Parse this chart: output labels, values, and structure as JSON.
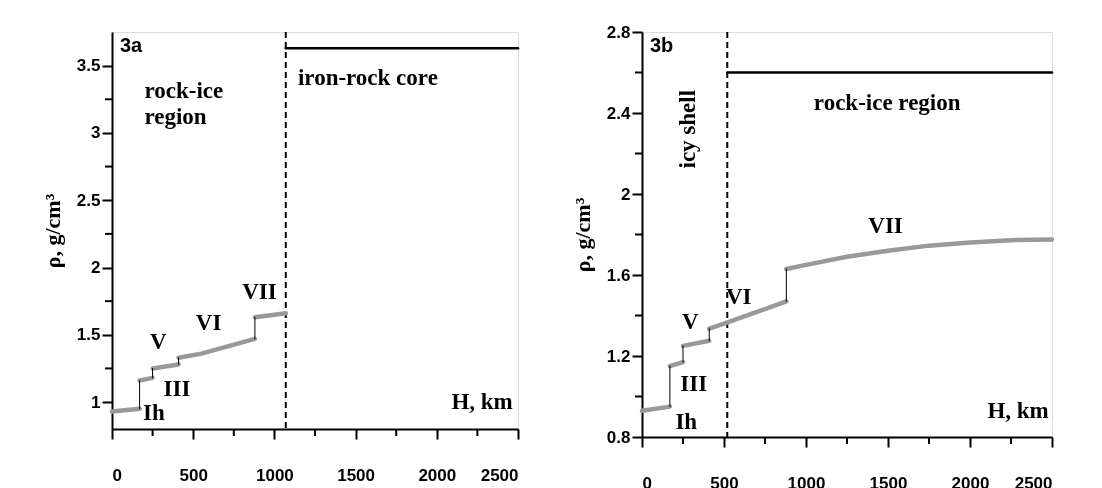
{
  "chart_data": [
    {
      "type": "line",
      "title": "3a",
      "ylabel": "ρ, g/cm³",
      "xlim": [
        0,
        2500
      ],
      "ylim": [
        0.8,
        3.75
      ],
      "xticks": [
        0,
        {
          "value": 250,
          "label": null
        },
        500,
        {
          "value": 750,
          "label": null
        },
        1000,
        {
          "value": 1250,
          "label": null
        },
        1500,
        {
          "value": 1750,
          "label": null
        },
        2000,
        {
          "value": 2250,
          "label": null
        },
        2500
      ],
      "yticks": [
        1,
        {
          "value": 1.25,
          "label": null
        },
        1.5,
        {
          "value": 1.75,
          "label": null
        },
        2,
        {
          "value": 2.25,
          "label": null
        },
        2.5,
        {
          "value": 2.75,
          "label": null
        },
        3,
        {
          "value": 3.25,
          "label": null
        },
        3.5
      ],
      "grid": false,
      "line_style": "solid",
      "series": [
        {
          "color": "#999999",
          "x": [
            0,
            170,
            null,
            170,
            250,
            null,
            250,
            410,
            null,
            410,
            550,
            880,
            null,
            880,
            1070
          ],
          "values": [
            0.93,
            0.95,
            null,
            1.16,
            1.18,
            null,
            1.25,
            1.28,
            null,
            1.33,
            1.36,
            1.47,
            null,
            1.63,
            1.66
          ]
        },
        {
          "color": "#000000",
          "x": [
            170,
            170,
            null,
            250,
            250,
            null,
            410,
            410,
            null,
            880,
            880
          ],
          "values": [
            0.95,
            1.16,
            null,
            1.18,
            1.25,
            null,
            1.28,
            1.33,
            null,
            1.47,
            1.63
          ]
        },
        {
          "color": "#000000",
          "x": [
            1070,
            2500
          ],
          "values": [
            3.63,
            3.63
          ]
        }
      ],
      "ref_lines": [
        {
          "axis": "x",
          "value": 1070,
          "color": "#000000",
          "line_style": "dashed"
        }
      ],
      "annotations": [
        "rock-ice region",
        "iron-rock core",
        "H, km",
        "Ih",
        "III",
        "V",
        "VI",
        "VII"
      ]
    },
    {
      "type": "line",
      "title": "3b",
      "ylabel": "ρ, g/cm³",
      "xlim": [
        0,
        2500
      ],
      "ylim": [
        0.8,
        2.8
      ],
      "xticks": [
        0,
        {
          "value": 250,
          "label": null
        },
        500,
        {
          "value": 750,
          "label": null
        },
        1000,
        {
          "value": 1250,
          "label": null
        },
        1500,
        {
          "value": 1750,
          "label": null
        },
        2000,
        {
          "value": 2250,
          "label": null
        },
        2500
      ],
      "yticks": [
        0.8,
        {
          "value": 1.0,
          "label": null
        },
        1.2,
        {
          "value": 1.4,
          "label": null
        },
        1.6,
        {
          "value": 1.8,
          "label": null
        },
        2,
        {
          "value": 2.2,
          "label": null
        },
        2.4,
        {
          "value": 2.6,
          "label": null
        },
        2.8
      ],
      "grid": false,
      "line_style": "solid",
      "series": [
        {
          "color": "#999999",
          "x": [
            0,
            170,
            null,
            170,
            250,
            null,
            250,
            410,
            null,
            410,
            500,
            880,
            null,
            880,
            1000,
            1250,
            1500,
            1750,
            2000,
            2250,
            2500
          ],
          "values": [
            0.93,
            0.95,
            null,
            1.15,
            1.17,
            null,
            1.25,
            1.275,
            null,
            1.335,
            1.36,
            1.47,
            null,
            1.63,
            1.65,
            1.69,
            1.72,
            1.745,
            1.76,
            1.772,
            1.775
          ]
        },
        {
          "color": "#000000",
          "x": [
            170,
            170,
            null,
            250,
            250,
            null,
            410,
            410,
            null,
            880,
            880
          ],
          "values": [
            0.95,
            1.15,
            null,
            1.17,
            1.25,
            null,
            1.275,
            1.335,
            null,
            1.47,
            1.63
          ]
        },
        {
          "color": "#000000",
          "x": [
            520,
            2500
          ],
          "values": [
            2.6,
            2.6
          ]
        }
      ],
      "ref_lines": [
        {
          "axis": "x",
          "value": 520,
          "color": "#000000",
          "line_style": "dashed"
        }
      ],
      "annotations": [
        "icy shell",
        "rock-ice region",
        "H, km",
        "Ih",
        "III",
        "V",
        "VI",
        "VII"
      ]
    }
  ]
}
